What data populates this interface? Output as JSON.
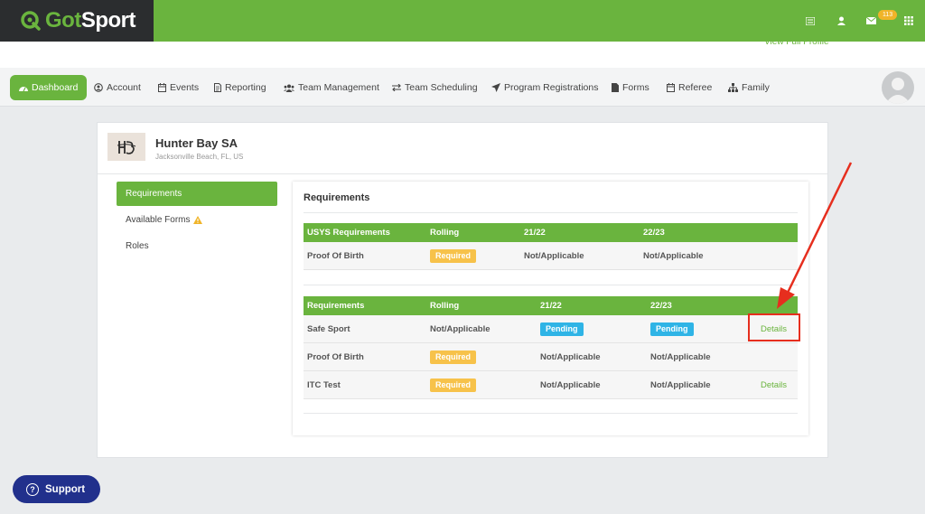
{
  "brand": {
    "logo_text_g": "Got",
    "logo_text_rest": "Sport",
    "accent": "#6ab43e",
    "dark": "#2b2d2f"
  },
  "topbar": {
    "notification_count": "113",
    "icons": [
      "list-icon",
      "user-icon",
      "mail-icon",
      "grid-icon"
    ]
  },
  "view_full_profile": "View Full Profile",
  "nav": {
    "items": [
      {
        "label": "Dashboard",
        "icon": "dashboard-icon"
      },
      {
        "label": "Account",
        "icon": "user-circle-icon"
      },
      {
        "label": "Events",
        "icon": "calendar-icon"
      },
      {
        "label": "Reporting",
        "icon": "document-icon"
      },
      {
        "label": "Team Management",
        "icon": "users-icon"
      },
      {
        "label": "Team Scheduling",
        "icon": "exchange-icon"
      },
      {
        "label": "Program Registrations",
        "icon": "paper-plane-icon"
      },
      {
        "label": "Forms",
        "icon": "file-icon"
      },
      {
        "label": "Referee",
        "icon": "calendar-icon"
      },
      {
        "label": "Family",
        "icon": "sitemap-icon"
      }
    ]
  },
  "org": {
    "name": "Hunter Bay SA",
    "location": "Jacksonville Beach, FL, US"
  },
  "sidebar": {
    "items": [
      {
        "label": "Requirements"
      },
      {
        "label": "Available Forms"
      },
      {
        "label": "Roles"
      }
    ]
  },
  "requirements": {
    "title": "Requirements",
    "table1": {
      "headers": [
        "USYS Requirements",
        "Rolling",
        "21/22",
        "22/23"
      ],
      "rows": [
        {
          "name": "Proof Of Birth",
          "rolling": "Required",
          "y2122": "Not/Applicable",
          "y2223": "Not/Applicable"
        }
      ]
    },
    "table2": {
      "headers": [
        "Requirements",
        "Rolling",
        "21/22",
        "22/23"
      ],
      "rows": [
        {
          "name": "Safe Sport",
          "rolling": "Not/Applicable",
          "y2122": "Pending",
          "y2223": "Pending",
          "action": "Details"
        },
        {
          "name": "Proof Of Birth",
          "rolling": "Required",
          "y2122": "Not/Applicable",
          "y2223": "Not/Applicable",
          "action": ""
        },
        {
          "name": "ITC Test",
          "rolling": "Required",
          "y2122": "Not/Applicable",
          "y2223": "Not/Applicable",
          "action": "Details"
        }
      ]
    }
  },
  "support": {
    "label": "Support"
  },
  "colors": {
    "required": "#f7c24a",
    "pending": "#2fb4e6",
    "highlight": "#e62e1e",
    "support": "#21308c"
  }
}
